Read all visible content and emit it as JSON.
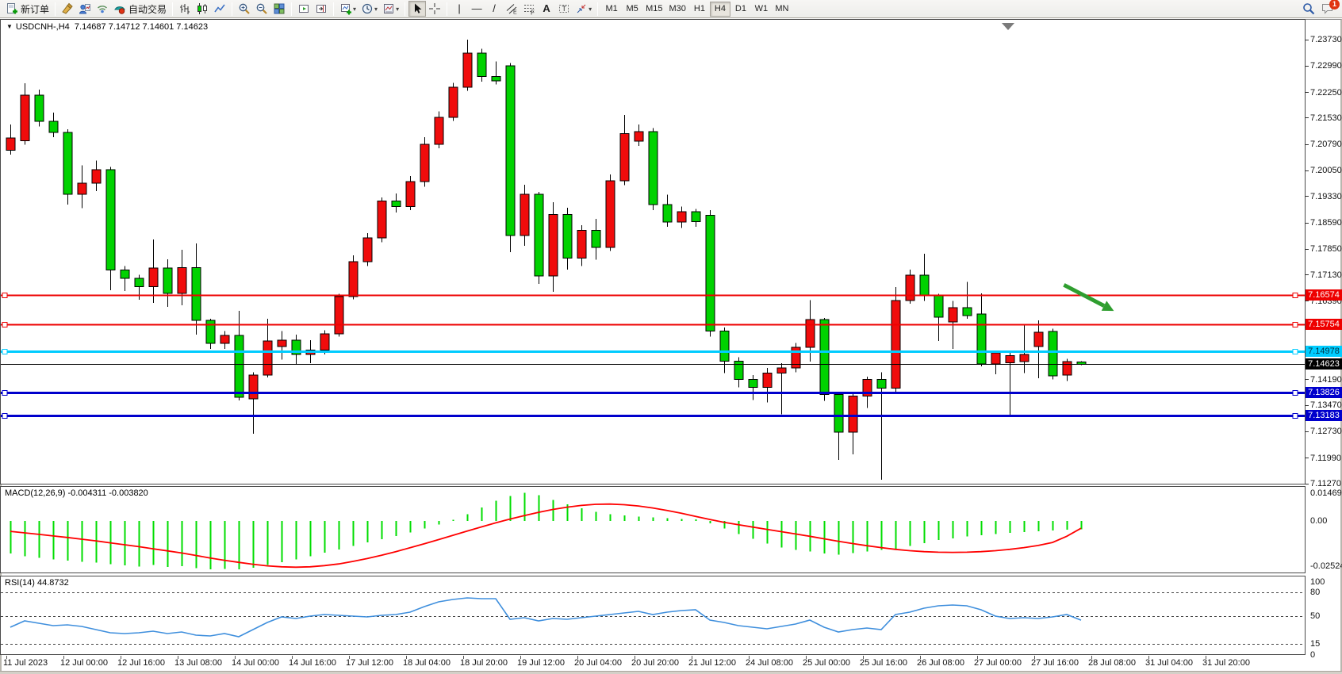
{
  "toolbar": {
    "new_order": "新订单",
    "autotrading": "自动交易",
    "badge_count": "1",
    "icon_names": [
      "new-order-icon",
      "hammer-icon",
      "profiles-icon",
      "signal-icon",
      "autotrading-icon",
      "bar-chart-icon",
      "candlestick-icon",
      "line-chart-icon",
      "zoom-in-icon",
      "zoom-out-icon",
      "tile-windows-icon",
      "auto-scroll-icon",
      "chart-shift-icon",
      "indicators-icon",
      "periods-icon",
      "templates-icon",
      "cursor-icon",
      "crosshair-icon",
      "vertical-line-icon",
      "horizontal-line-icon",
      "trendline-icon",
      "channel-icon",
      "fibonacci-icon",
      "text-icon",
      "label-icon",
      "arrows-icon",
      "search-icon",
      "chat-icon"
    ],
    "timeframes": [
      {
        "label": "M1",
        "active": false
      },
      {
        "label": "M5",
        "active": false
      },
      {
        "label": "M15",
        "active": false
      },
      {
        "label": "M30",
        "active": false
      },
      {
        "label": "H1",
        "active": false
      },
      {
        "label": "H4",
        "active": true
      },
      {
        "label": "D1",
        "active": false
      },
      {
        "label": "W1",
        "active": false
      },
      {
        "label": "MN",
        "active": false
      }
    ]
  },
  "chart": {
    "symbol_title": "USDCNH-,H4",
    "ohlc_text": "7.14687 7.14712 7.14601 7.14623"
  },
  "chart_data": {
    "type": "candlestick",
    "symbol": "USDCNH",
    "timeframe": "H4",
    "colors": {
      "up_body": "#f00c0c",
      "down_body": "#00d200",
      "outline": "#000000",
      "line_red": "#ee0000",
      "line_cyan": "#00ccff",
      "line_blue": "#0000cc",
      "line_black": "#000000",
      "macd_hist": "#00dd00",
      "macd_signal": "#ff0000",
      "rsi_line": "#3f8fdd",
      "arrow": "#2f9e2f"
    },
    "price_axis": {
      "max": 7.2431,
      "min": 7.1125,
      "ticks": [
        "7.23730",
        "7.22990",
        "7.22250",
        "7.21530",
        "7.20790",
        "7.20050",
        "7.19330",
        "7.18590",
        "7.17850",
        "7.17130",
        "7.16390",
        "7.15670",
        "7.14930",
        "7.14190",
        "7.13470",
        "7.12730",
        "7.11990",
        "7.11270"
      ]
    },
    "hlines": [
      {
        "price": 7.16574,
        "label": "7.16574",
        "color": "#ee0000",
        "thickness": 2,
        "handles": true
      },
      {
        "price": 7.15754,
        "label": "7.15754",
        "color": "#ee0000",
        "thickness": 2,
        "handles": true
      },
      {
        "price": 7.14978,
        "label": "7.14978",
        "color": "#00ccff",
        "thickness": 3,
        "handles": true
      },
      {
        "price": 7.14623,
        "label": "7.14623",
        "color": "#000000",
        "thickness": 1,
        "handles": false
      },
      {
        "price": 7.13826,
        "label": "7.13826",
        "color": "#0000cc",
        "thickness": 3,
        "handles": true
      },
      {
        "price": 7.13183,
        "label": "7.13183",
        "color": "#0000cc",
        "thickness": 3,
        "handles": true
      }
    ],
    "candles": [
      [
        7.2063,
        7.2135,
        7.205,
        7.2097
      ],
      [
        7.209,
        7.2251,
        7.2078,
        7.2217
      ],
      [
        7.2217,
        7.2233,
        7.213,
        7.2144
      ],
      [
        7.2144,
        7.2168,
        7.21,
        7.2113
      ],
      [
        7.2113,
        7.2122,
        7.191,
        7.1939
      ],
      [
        7.1939,
        7.202,
        7.19,
        7.1971
      ],
      [
        7.1971,
        7.2034,
        7.1948,
        7.2008
      ],
      [
        7.2008,
        7.2016,
        7.167,
        7.1727
      ],
      [
        7.1727,
        7.1738,
        7.1668,
        7.1703
      ],
      [
        7.1703,
        7.1713,
        7.1643,
        7.168
      ],
      [
        7.168,
        7.1812,
        7.1634,
        7.1732
      ],
      [
        7.1732,
        7.1757,
        7.1623,
        7.1661
      ],
      [
        7.1661,
        7.1784,
        7.1628,
        7.1734
      ],
      [
        7.1734,
        7.1801,
        7.1545,
        7.1585
      ],
      [
        7.1585,
        7.159,
        7.1505,
        7.1521
      ],
      [
        7.1521,
        7.1555,
        7.1505,
        7.1543
      ],
      [
        7.1543,
        7.1612,
        7.1361,
        7.137
      ],
      [
        7.1365,
        7.144,
        7.1267,
        7.1432
      ],
      [
        7.1432,
        7.159,
        7.1425,
        7.1528
      ],
      [
        7.1512,
        7.1555,
        7.1475,
        7.153
      ],
      [
        7.153,
        7.1545,
        7.1462,
        7.149
      ],
      [
        7.149,
        7.153,
        7.1465,
        7.1502
      ],
      [
        7.1502,
        7.1558,
        7.149,
        7.1548
      ],
      [
        7.1548,
        7.166,
        7.154,
        7.1652
      ],
      [
        7.1652,
        7.1768,
        7.1645,
        7.175
      ],
      [
        7.175,
        7.183,
        7.1738,
        7.1817
      ],
      [
        7.1817,
        7.193,
        7.1805,
        7.192
      ],
      [
        7.192,
        7.1942,
        7.1888,
        7.1905
      ],
      [
        7.1905,
        7.199,
        7.1895,
        7.1975
      ],
      [
        7.1975,
        7.21,
        7.196,
        7.208
      ],
      [
        7.208,
        7.2172,
        7.2068,
        7.2155
      ],
      [
        7.2155,
        7.2252,
        7.2145,
        7.224
      ],
      [
        7.224,
        7.2373,
        7.223,
        7.2335
      ],
      [
        7.2335,
        7.2348,
        7.2255,
        7.227
      ],
      [
        7.227,
        7.2312,
        7.2248,
        7.2258
      ],
      [
        7.23,
        7.2308,
        7.1777,
        7.1824
      ],
      [
        7.1824,
        7.1966,
        7.1795,
        7.1939
      ],
      [
        7.1939,
        7.1946,
        7.1688,
        7.171
      ],
      [
        7.171,
        7.1917,
        7.1666,
        7.1883
      ],
      [
        7.1883,
        7.1902,
        7.1728,
        7.176
      ],
      [
        7.176,
        7.1852,
        7.1738,
        7.1838
      ],
      [
        7.1838,
        7.187,
        7.1756,
        7.179
      ],
      [
        7.179,
        7.1995,
        7.178,
        7.1977
      ],
      [
        7.1977,
        7.2162,
        7.1965,
        7.211
      ],
      [
        7.2088,
        7.2135,
        7.2075,
        7.2115
      ],
      [
        7.2115,
        7.2125,
        7.1895,
        7.191
      ],
      [
        7.191,
        7.1938,
        7.1848,
        7.1861
      ],
      [
        7.1861,
        7.1905,
        7.1845,
        7.189
      ],
      [
        7.189,
        7.1898,
        7.1848,
        7.1862
      ],
      [
        7.188,
        7.1895,
        7.154,
        7.1556
      ],
      [
        7.1556,
        7.1565,
        7.1438,
        7.1471
      ],
      [
        7.1471,
        7.1482,
        7.1398,
        7.142
      ],
      [
        7.142,
        7.1432,
        7.1362,
        7.1398
      ],
      [
        7.1398,
        7.1452,
        7.1355,
        7.1438
      ],
      [
        7.1438,
        7.1465,
        7.1322,
        7.1452
      ],
      [
        7.1452,
        7.1522,
        7.144,
        7.151
      ],
      [
        7.151,
        7.1642,
        7.147,
        7.1588
      ],
      [
        7.1588,
        7.1592,
        7.136,
        7.1378
      ],
      [
        7.1378,
        7.1385,
        7.1194,
        7.1272
      ],
      [
        7.1272,
        7.1382,
        7.121,
        7.1373
      ],
      [
        7.1373,
        7.1428,
        7.134,
        7.142
      ],
      [
        7.142,
        7.144,
        7.1138,
        7.1395
      ],
      [
        7.1395,
        7.1679,
        7.1385,
        7.1641
      ],
      [
        7.1641,
        7.1728,
        7.1632,
        7.1712
      ],
      [
        7.1712,
        7.1772,
        7.164,
        7.1654
      ],
      [
        7.1654,
        7.166,
        7.1528,
        7.1594
      ],
      [
        7.1581,
        7.164,
        7.1505,
        7.1621
      ],
      [
        7.1621,
        7.1694,
        7.159,
        7.1599
      ],
      [
        7.1603,
        7.1661,
        7.1456,
        7.1463
      ],
      [
        7.1463,
        7.15,
        7.1434,
        7.1494
      ],
      [
        7.1467,
        7.15,
        7.132,
        7.1487
      ],
      [
        7.147,
        7.1572,
        7.1438,
        7.149
      ],
      [
        7.1512,
        7.1586,
        7.1423,
        7.1552
      ],
      [
        7.1554,
        7.1562,
        7.142,
        7.143
      ],
      [
        7.1432,
        7.1478,
        7.1415,
        7.147
      ],
      [
        7.14687,
        7.14712,
        7.14601,
        7.14623
      ]
    ],
    "macd": {
      "label": "MACD(12,26,9) -0.004311 -0.003820",
      "max": 0.0182,
      "min": -0.0273,
      "axis_labels": [
        {
          "text": "0.014691",
          "value": 0.014691
        },
        {
          "text": "0.00",
          "value": 0.0
        },
        {
          "text": "-0.02524",
          "value": -0.02524
        }
      ],
      "histogram": [
        -0.017,
        -0.0185,
        -0.0192,
        -0.02,
        -0.0206,
        -0.0212,
        -0.0218,
        -0.0226,
        -0.0232,
        -0.0238,
        -0.023,
        -0.024,
        -0.0236,
        -0.0246,
        -0.0252,
        -0.025,
        -0.0252,
        -0.0244,
        -0.023,
        -0.0216,
        -0.02,
        -0.0184,
        -0.0166,
        -0.0148,
        -0.013,
        -0.0112,
        -0.0095,
        -0.0078,
        -0.006,
        -0.004,
        -0.0018,
        0.0006,
        0.0035,
        0.007,
        0.0105,
        0.013,
        0.0147,
        0.0135,
        0.011,
        0.0087,
        0.0066,
        0.0048,
        0.0035,
        0.0028,
        0.0022,
        0.0018,
        0.0014,
        0.0011,
        0.0008,
        -0.0012,
        -0.004,
        -0.0068,
        -0.0094,
        -0.0118,
        -0.0138,
        -0.0152,
        -0.016,
        -0.017,
        -0.0175,
        -0.0168,
        -0.016,
        -0.0152,
        -0.0145,
        -0.013,
        -0.0115,
        -0.01,
        -0.009,
        -0.008,
        -0.0074,
        -0.0068,
        -0.0063,
        -0.0058,
        -0.0054,
        -0.005,
        -0.0046,
        -0.0043
      ],
      "signal": [
        -0.0054,
        -0.0062,
        -0.007,
        -0.0078,
        -0.0086,
        -0.0095,
        -0.0104,
        -0.0114,
        -0.0124,
        -0.0134,
        -0.0145,
        -0.0156,
        -0.0167,
        -0.018,
        -0.0193,
        -0.0205,
        -0.0216,
        -0.0226,
        -0.0234,
        -0.0239,
        -0.0241,
        -0.0239,
        -0.0233,
        -0.0224,
        -0.0211,
        -0.0196,
        -0.0179,
        -0.016,
        -0.014,
        -0.0119,
        -0.0097,
        -0.0075,
        -0.0053,
        -0.0031,
        -0.001,
        0.001,
        0.0028,
        0.0045,
        0.006,
        0.0072,
        0.0081,
        0.0087,
        0.0088,
        0.0085,
        0.0078,
        0.0068,
        0.0055,
        0.004,
        0.0024,
        0.0008,
        -0.0007,
        -0.002,
        -0.0032,
        -0.0044,
        -0.0056,
        -0.0068,
        -0.008,
        -0.0093,
        -0.0106,
        -0.0118,
        -0.0129,
        -0.0139,
        -0.0148,
        -0.0155,
        -0.016,
        -0.0163,
        -0.0164,
        -0.0163,
        -0.016,
        -0.0155,
        -0.0148,
        -0.0139,
        -0.0128,
        -0.0112,
        -0.008,
        -0.0038
      ]
    },
    "rsi": {
      "label": "RSI(14) 44.8732",
      "max": 101,
      "min": 1,
      "levels": [
        80,
        50,
        15
      ],
      "axis_labels": [
        {
          "text": "100",
          "value": 100
        },
        {
          "text": "80",
          "value": 80
        },
        {
          "text": "50",
          "value": 50
        },
        {
          "text": "15",
          "value": 15
        },
        {
          "text": "0",
          "value": 0
        }
      ],
      "values": [
        36,
        44,
        41,
        38,
        39,
        37,
        33,
        29,
        28,
        29,
        31,
        28,
        30,
        26,
        25,
        28,
        24,
        33,
        42,
        49,
        47,
        50,
        52,
        51,
        50,
        49,
        51,
        52,
        55,
        62,
        68,
        71,
        73,
        72,
        72,
        46,
        48,
        44,
        47,
        46,
        48,
        50,
        52,
        54,
        56,
        52,
        55,
        57,
        58,
        45,
        42,
        38,
        36,
        34,
        37,
        40,
        45,
        36,
        30,
        33,
        35,
        33,
        52,
        55,
        60,
        63,
        64,
        63,
        58,
        50,
        47,
        48,
        47,
        49,
        52,
        44.87
      ]
    },
    "time_axis": [
      "11 Jul 2023",
      "12 Jul 00:00",
      "12 Jul 16:00",
      "13 Jul 08:00",
      "14 Jul 00:00",
      "14 Jul 16:00",
      "17 Jul 12:00",
      "18 Jul 04:00",
      "18 Jul 20:00",
      "19 Jul 12:00",
      "20 Jul 04:00",
      "20 Jul 20:00",
      "21 Jul 12:00",
      "24 Jul 08:00",
      "25 Jul 00:00",
      "25 Jul 16:00",
      "26 Jul 08:00",
      "27 Jul 00:00",
      "27 Jul 16:00",
      "28 Jul 08:00",
      "31 Jul 04:00",
      "31 Jul 20:00"
    ],
    "annotation_arrow": {
      "t1": 73.8,
      "p1": 7.1685,
      "t2": 77.3,
      "p2": 7.1612
    }
  }
}
